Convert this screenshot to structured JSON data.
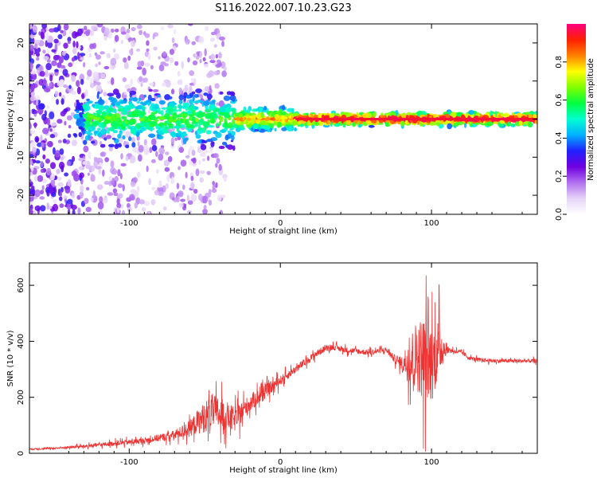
{
  "figure_title": "S116.2022.007.10.23.G23",
  "chart_data": [
    {
      "type": "heatmap",
      "xlabel": "Height of straight line (km)",
      "ylabel": "Frequency (Hz)",
      "xlim": [
        -166,
        170
      ],
      "ylim": [
        -25,
        25
      ],
      "xticks": [
        -100,
        0,
        100
      ],
      "yticks": [
        -20,
        -10,
        0,
        10,
        20
      ],
      "grid": false,
      "colorbar": {
        "label": "Normalized spectral amplitude",
        "range": [
          0,
          1
        ],
        "ticks": [
          0.0,
          0.2,
          0.4,
          0.6,
          0.8
        ],
        "colors": [
          "#ffffff",
          "#e6d4f7",
          "#b070f0",
          "#7000e0",
          "#2020ff",
          "#00b0ff",
          "#00ffd0",
          "#00ff40",
          "#80ff00",
          "#ffff00",
          "#ff8000",
          "#ff2000",
          "#ff0080"
        ]
      },
      "line_center_hz": 0.0,
      "regions": [
        {
          "x_range": [
            -166,
            -130
          ],
          "description_level": 0.35
        },
        {
          "x_range": [
            -130,
            -30
          ],
          "description_level": 0.55
        },
        {
          "x_range": [
            -30,
            10
          ],
          "description_level": 0.75
        },
        {
          "x_range": [
            10,
            170
          ],
          "description_level": 0.95
        }
      ]
    },
    {
      "type": "line",
      "xlabel": "Height of straight line (km)",
      "ylabel": "SNR (10 * v/v)",
      "xlim": [
        -166,
        170
      ],
      "ylim": [
        0,
        680
      ],
      "xticks": [
        -100,
        0,
        100
      ],
      "yticks": [
        0,
        200,
        400,
        600
      ],
      "grid": false,
      "series": [
        {
          "color": "#ee3333",
          "x": [
            -166,
            -150,
            -130,
            -110,
            -90,
            -80,
            -70,
            -60,
            -55,
            -50,
            -45,
            -40,
            -35,
            -30,
            -25,
            -20,
            -15,
            -10,
            -5,
            0,
            5,
            10,
            15,
            20,
            25,
            30,
            35,
            40,
            45,
            50,
            55,
            60,
            65,
            70,
            75,
            80,
            85,
            90,
            95,
            100,
            105,
            110,
            115,
            120,
            125,
            130,
            140,
            150,
            160,
            170
          ],
          "y": [
            15,
            18,
            25,
            35,
            45,
            55,
            65,
            90,
            110,
            130,
            150,
            140,
            130,
            120,
            150,
            180,
            200,
            220,
            240,
            260,
            280,
            300,
            320,
            340,
            360,
            375,
            380,
            372,
            368,
            365,
            362,
            360,
            365,
            370,
            340,
            320,
            330,
            350,
            340,
            320,
            380,
            370,
            365,
            360,
            340,
            335,
            330,
            330,
            330,
            330
          ],
          "noise": [
            4,
            5,
            8,
            12,
            15,
            18,
            25,
            40,
            60,
            80,
            90,
            85,
            75,
            60,
            55,
            45,
            40,
            35,
            30,
            25,
            22,
            20,
            20,
            18,
            18,
            16,
            15,
            15,
            15,
            14,
            14,
            14,
            14,
            15,
            20,
            30,
            120,
            180,
            220,
            200,
            150,
            20,
            12,
            12,
            10,
            10,
            10,
            10,
            10,
            10
          ]
        }
      ]
    }
  ]
}
